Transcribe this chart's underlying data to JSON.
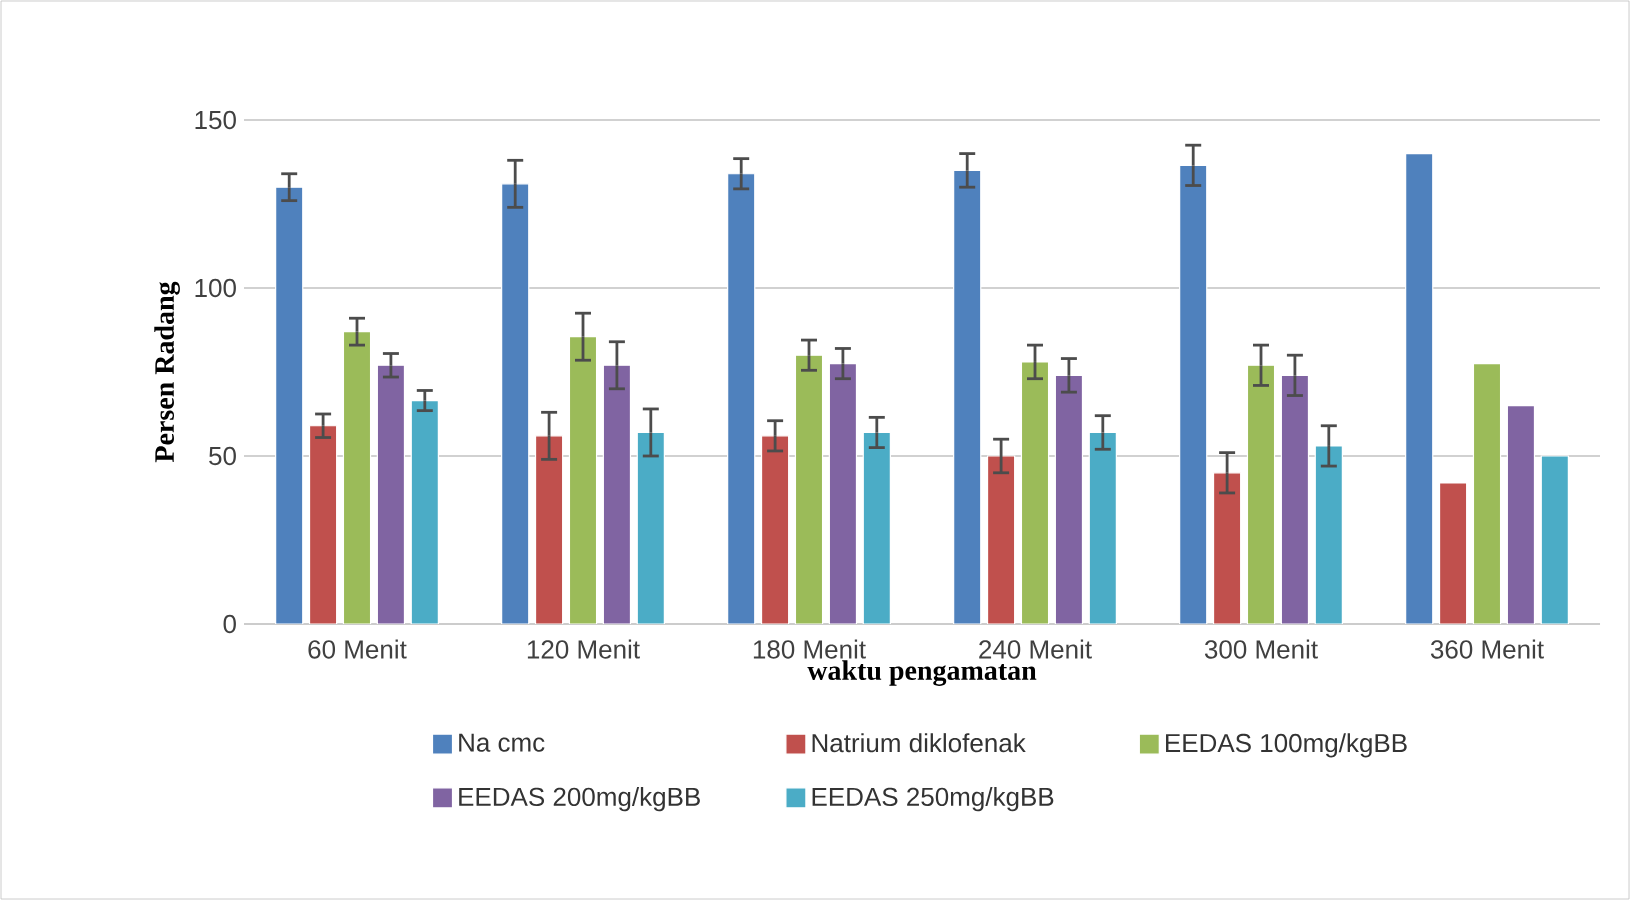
{
  "chart_data": {
    "type": "bar",
    "xlabel": "waktu pengamatan",
    "ylabel": "Persen Radang",
    "categories": [
      "60 Menit",
      "120 Menit",
      "180 Menit",
      "240 Menit",
      "300 Menit",
      "360 Menit"
    ],
    "series": [
      {
        "name": "Na cmc",
        "color": "#4f81bd",
        "values": [
          130,
          131,
          134,
          135,
          136.5,
          140
        ],
        "errors": [
          4,
          7,
          4.5,
          5,
          6,
          null
        ]
      },
      {
        "name": "Natrium diklofenak",
        "color": "#c0504d",
        "values": [
          59,
          56,
          56,
          50,
          45,
          42
        ],
        "errors": [
          3.5,
          7,
          4.5,
          5,
          6,
          null
        ]
      },
      {
        "name": "EEDAS 100mg/kgBB",
        "color": "#9bbb59",
        "values": [
          87,
          85.5,
          80,
          78,
          77,
          77.5
        ],
        "errors": [
          4,
          7,
          4.5,
          5,
          6,
          null
        ]
      },
      {
        "name": "EEDAS 200mg/kgBB",
        "color": "#8064a2",
        "values": [
          77,
          77,
          77.5,
          74,
          74,
          65
        ],
        "errors": [
          3.5,
          7,
          4.5,
          5,
          6,
          null
        ]
      },
      {
        "name": "EEDAS 250mg/kgBB",
        "color": "#4bacc6",
        "values": [
          66.5,
          57,
          57,
          57,
          53,
          50
        ],
        "errors": [
          3,
          7,
          4.5,
          5,
          6,
          null
        ]
      }
    ],
    "ylim": [
      0,
      150
    ],
    "yticks": [
      0,
      50,
      100,
      150
    ],
    "grid": "y",
    "legend": "bottom"
  }
}
